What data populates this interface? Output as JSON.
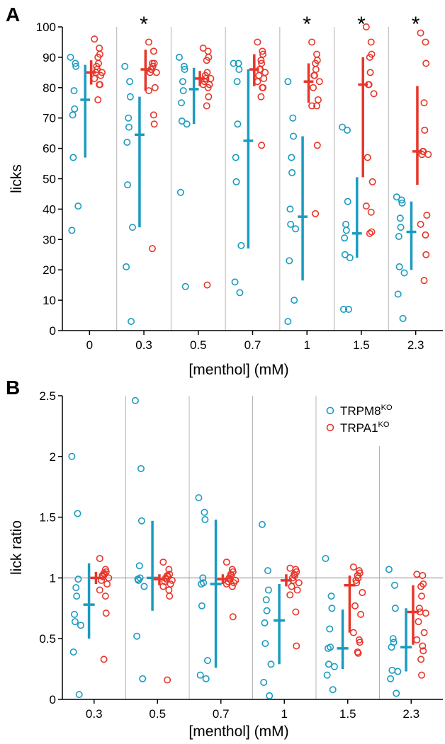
{
  "chart_data": [
    {
      "panel": "A",
      "type": "scatter",
      "xlabel": "[menthol] (mM)",
      "ylabel": "licks",
      "ylim": [
        0,
        100
      ],
      "yticks": [
        0,
        10,
        20,
        30,
        40,
        50,
        60,
        70,
        80,
        90,
        100
      ],
      "categories": [
        "0",
        "0.3",
        "0.5",
        "0.7",
        "1",
        "1.5",
        "2.3"
      ],
      "significance": [
        "",
        "*",
        "",
        "",
        "*",
        "*",
        "*"
      ],
      "series": [
        {
          "name": "TRPM8KO",
          "color": "#1a9bc0",
          "points": [
            [
              90,
              88,
              87,
              79,
              73,
              71,
              57,
              41,
              33
            ],
            [
              87,
              82,
              77,
              70,
              67,
              62,
              48,
              34,
              21,
              3
            ],
            [
              90,
              87,
              86,
              82,
              79,
              75,
              69,
              68,
              45.5,
              14.5
            ],
            [
              88,
              88,
              86,
              82,
              68,
              57,
              49,
              28,
              16,
              12.5
            ],
            [
              82,
              70,
              64,
              57,
              52,
              40,
              35,
              33.5,
              23,
              10,
              3
            ],
            [
              67,
              66,
              42.5,
              35,
              33,
              30.5,
              25,
              24,
              7,
              7
            ],
            [
              44,
              43,
              42,
              37,
              34,
              31,
              21,
              19,
              12,
              4
            ]
          ],
          "mean": [
            76,
            64.5,
            79.5,
            62.5,
            37.5,
            32,
            32.5
          ],
          "upper": [
            87.5,
            77,
            86.5,
            86,
            64,
            50.5,
            42.5
          ],
          "lower": [
            57,
            34,
            68,
            27,
            16.5,
            24,
            20
          ]
        },
        {
          "name": "TRPA1KO",
          "color": "#e8352a",
          "points": [
            [
              96,
              93,
              91,
              90,
              88,
              87,
              86,
              85,
              85,
              84,
              83,
              81,
              81,
              76
            ],
            [
              95,
              92,
              88,
              88,
              87,
              86,
              86,
              85,
              85,
              80,
              79,
              71,
              68,
              27
            ],
            [
              93,
              92,
              90,
              89,
              85,
              84,
              83,
              83,
              82,
              81,
              81,
              80,
              77,
              74,
              15
            ],
            [
              95,
              92,
              91,
              89,
              88,
              86,
              86,
              85,
              84,
              83,
              82,
              80,
              80,
              77,
              61
            ],
            [
              95,
              91,
              89,
              88,
              86,
              84,
              84,
              82,
              80,
              76,
              74,
              74,
              61,
              38.5
            ],
            [
              100,
              95,
              91,
              90,
              85,
              81,
              81,
              78,
              57,
              49,
              41,
              39,
              32.5,
              32
            ],
            [
              98,
              95,
              88,
              75,
              66,
              59,
              59,
              58,
              58,
              38,
              35,
              31.5,
              25,
              16.5
            ]
          ],
          "mean": [
            85,
            86,
            83,
            86,
            82,
            81,
            59
          ],
          "upper": [
            89,
            92.5,
            85.5,
            91,
            88,
            90,
            80.5
          ],
          "lower": [
            81,
            79,
            80.5,
            80.5,
            75,
            50.5,
            48
          ]
        }
      ]
    },
    {
      "panel": "B",
      "type": "scatter",
      "xlabel": "[menthol] (mM)",
      "ylabel": "lick ratio",
      "ylim": [
        0,
        2.5
      ],
      "yticks": [
        0,
        0.5,
        1,
        1.5,
        2,
        2.5
      ],
      "reference_line": 1,
      "categories": [
        "0.3",
        "0.5",
        "0.7",
        "1",
        "1.5",
        "2.3"
      ],
      "legend": {
        "position": "top-right",
        "entries": [
          "TRPM8",
          "TRPA1"
        ],
        "superscript": "KO"
      },
      "series": [
        {
          "name": "TRPM8KO",
          "color": "#1a9bc0",
          "points": [
            [
              2.0,
              1.53,
              0.99,
              0.92,
              0.85,
              0.7,
              0.64,
              0.61,
              0.39,
              0.04
            ],
            [
              2.46,
              1.9,
              1.47,
              1.1,
              1.0,
              0.99,
              0.98,
              0.93,
              0.52,
              0.17
            ],
            [
              1.66,
              1.54,
              1.48,
              1.0,
              0.96,
              0.95,
              0.77,
              0.32,
              0.2,
              0.17
            ],
            [
              1.44,
              1.06,
              0.9,
              0.82,
              0.73,
              0.63,
              0.46,
              0.29,
              0.14,
              0.03
            ],
            [
              1.16,
              0.85,
              0.75,
              0.58,
              0.43,
              0.42,
              0.29,
              0.27,
              0.2,
              0.08
            ],
            [
              1.07,
              0.94,
              0.75,
              0.5,
              0.47,
              0.43,
              0.24,
              0.23,
              0.17,
              0.05
            ]
          ],
          "mean": [
            0.78,
            1.0,
            0.95,
            0.65,
            0.42,
            0.43
          ],
          "upper": [
            1.12,
            1.47,
            1.48,
            0.95,
            0.74,
            0.75
          ],
          "lower": [
            0.5,
            0.73,
            0.26,
            0.29,
            0.25,
            0.23
          ]
        },
        {
          "name": "TRPA1KO",
          "color": "#e8352a",
          "points": [
            [
              1.16,
              1.07,
              1.05,
              1.04,
              1.03,
              1.02,
              1.01,
              1.0,
              0.98,
              0.95,
              0.9,
              0.85,
              0.71,
              0.33
            ],
            [
              1.13,
              1.07,
              1.03,
              1.02,
              1.01,
              1.0,
              0.99,
              0.98,
              0.97,
              0.95,
              0.93,
              0.9,
              0.85,
              0.16
            ],
            [
              1.13,
              1.07,
              1.05,
              1.03,
              1.02,
              1.0,
              0.99,
              0.98,
              0.97,
              0.96,
              0.95,
              0.93,
              0.68
            ],
            [
              1.08,
              1.07,
              1.05,
              1.03,
              1.02,
              1.0,
              0.98,
              0.96,
              0.93,
              0.9,
              0.86,
              0.72,
              0.44
            ],
            [
              1.09,
              1.06,
              1.04,
              1.02,
              1.0,
              0.98,
              0.96,
              0.88,
              0.77,
              0.7,
              0.55,
              0.49,
              0.47,
              0.39,
              0.38
            ],
            [
              1.03,
              1.02,
              0.95,
              0.93,
              0.85,
              0.75,
              0.72,
              0.71,
              0.64,
              0.55,
              0.49,
              0.44,
              0.4,
              0.33,
              0.2
            ]
          ],
          "mean": [
            1.0,
            0.99,
            0.99,
            0.98,
            0.94,
            0.72
          ],
          "upper": [
            1.05,
            1.03,
            1.03,
            1.03,
            1.02,
            0.94
          ],
          "lower": [
            0.95,
            0.94,
            0.95,
            0.93,
            0.55,
            0.45
          ]
        }
      ]
    }
  ]
}
